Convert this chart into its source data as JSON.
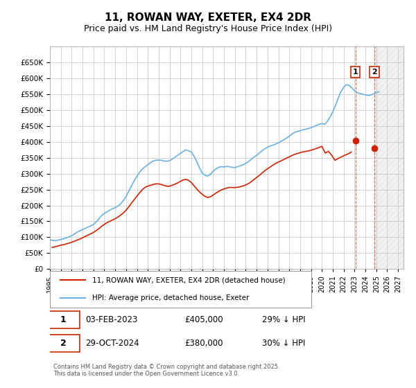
{
  "title": "11, ROWAN WAY, EXETER, EX4 2DR",
  "subtitle": "Price paid vs. HM Land Registry's House Price Index (HPI)",
  "ylabel": "",
  "background_color": "#ffffff",
  "plot_bg_color": "#ffffff",
  "grid_color": "#cccccc",
  "hpi_color": "#6ab0e0",
  "price_color": "#cc2200",
  "ylim": [
    0,
    700000
  ],
  "yticks": [
    0,
    50000,
    100000,
    150000,
    200000,
    250000,
    300000,
    350000,
    400000,
    450000,
    500000,
    550000,
    600000,
    650000
  ],
  "xlim_start": 1995.0,
  "xlim_end": 2027.5,
  "xticks": [
    1995,
    1996,
    1997,
    1998,
    1999,
    2000,
    2001,
    2002,
    2003,
    2004,
    2005,
    2006,
    2007,
    2008,
    2009,
    2010,
    2011,
    2012,
    2013,
    2014,
    2015,
    2016,
    2017,
    2018,
    2019,
    2020,
    2021,
    2022,
    2023,
    2024,
    2025,
    2026,
    2027
  ],
  "sale1_x": 2023.085,
  "sale1_y": 405000,
  "sale1_label": "1",
  "sale2_x": 2024.83,
  "sale2_y": 380000,
  "sale2_label": "2",
  "legend_line1": "11, ROWAN WAY, EXETER, EX4 2DR (detached house)",
  "legend_line2": "HPI: Average price, detached house, Exeter",
  "table_rows": [
    {
      "num": "1",
      "date": "03-FEB-2023",
      "price": "£405,000",
      "note": "29% ↓ HPI"
    },
    {
      "num": "2",
      "date": "29-OCT-2024",
      "price": "£380,000",
      "note": "30% ↓ HPI"
    }
  ],
  "footer": "Contains HM Land Registry data © Crown copyright and database right 2025.\nThis data is licensed under the Open Government Licence v3.0.",
  "hpi_data_x": [
    1995.0,
    1995.25,
    1995.5,
    1995.75,
    1996.0,
    1996.25,
    1996.5,
    1996.75,
    1997.0,
    1997.25,
    1997.5,
    1997.75,
    1998.0,
    1998.25,
    1998.5,
    1998.75,
    1999.0,
    1999.25,
    1999.5,
    1999.75,
    2000.0,
    2000.25,
    2000.5,
    2000.75,
    2001.0,
    2001.25,
    2001.5,
    2001.75,
    2002.0,
    2002.25,
    2002.5,
    2002.75,
    2003.0,
    2003.25,
    2003.5,
    2003.75,
    2004.0,
    2004.25,
    2004.5,
    2004.75,
    2005.0,
    2005.25,
    2005.5,
    2005.75,
    2006.0,
    2006.25,
    2006.5,
    2006.75,
    2007.0,
    2007.25,
    2007.5,
    2007.75,
    2008.0,
    2008.25,
    2008.5,
    2008.75,
    2009.0,
    2009.25,
    2009.5,
    2009.75,
    2010.0,
    2010.25,
    2010.5,
    2010.75,
    2011.0,
    2011.25,
    2011.5,
    2011.75,
    2012.0,
    2012.25,
    2012.5,
    2012.75,
    2013.0,
    2013.25,
    2013.5,
    2013.75,
    2014.0,
    2014.25,
    2014.5,
    2014.75,
    2015.0,
    2015.25,
    2015.5,
    2015.75,
    2016.0,
    2016.25,
    2016.5,
    2016.75,
    2017.0,
    2017.25,
    2017.5,
    2017.75,
    2018.0,
    2018.25,
    2018.5,
    2018.75,
    2019.0,
    2019.25,
    2019.5,
    2019.75,
    2020.0,
    2020.25,
    2020.5,
    2020.75,
    2021.0,
    2021.25,
    2021.5,
    2021.75,
    2022.0,
    2022.25,
    2022.5,
    2022.75,
    2023.0,
    2023.25,
    2023.5,
    2023.75,
    2024.0,
    2024.25,
    2024.5,
    2024.75,
    2025.0,
    2025.25
  ],
  "hpi_data_y": [
    92000,
    90000,
    89000,
    91000,
    93000,
    95000,
    98000,
    101000,
    105000,
    110000,
    116000,
    120000,
    124000,
    128000,
    132000,
    136000,
    140000,
    148000,
    158000,
    168000,
    175000,
    180000,
    185000,
    190000,
    193000,
    198000,
    205000,
    215000,
    228000,
    245000,
    262000,
    278000,
    292000,
    305000,
    315000,
    322000,
    328000,
    335000,
    340000,
    342000,
    343000,
    342000,
    340000,
    339000,
    341000,
    346000,
    352000,
    358000,
    364000,
    370000,
    375000,
    372000,
    368000,
    355000,
    338000,
    318000,
    302000,
    295000,
    292000,
    298000,
    308000,
    315000,
    320000,
    322000,
    321000,
    323000,
    322000,
    320000,
    319000,
    322000,
    325000,
    328000,
    332000,
    338000,
    345000,
    352000,
    358000,
    365000,
    372000,
    378000,
    383000,
    387000,
    390000,
    393000,
    397000,
    402000,
    407000,
    412000,
    418000,
    425000,
    430000,
    433000,
    435000,
    438000,
    440000,
    442000,
    445000,
    448000,
    452000,
    455000,
    458000,
    455000,
    465000,
    478000,
    495000,
    515000,
    538000,
    558000,
    572000,
    580000,
    578000,
    570000,
    561000,
    555000,
    552000,
    550000,
    548000,
    546000,
    548000,
    551000,
    555000,
    558000
  ],
  "price_data_x": [
    1995.2,
    1995.5,
    1995.7,
    1996.0,
    1996.3,
    1996.6,
    1996.9,
    1997.2,
    1997.5,
    1997.8,
    1998.1,
    1998.4,
    1998.7,
    1999.0,
    1999.3,
    1999.6,
    1999.9,
    2000.2,
    2000.5,
    2000.8,
    2001.1,
    2001.4,
    2001.7,
    2002.0,
    2002.3,
    2002.6,
    2002.9,
    2003.2,
    2003.5,
    2003.8,
    2004.1,
    2004.4,
    2004.7,
    2005.0,
    2005.3,
    2005.6,
    2005.9,
    2006.2,
    2006.5,
    2006.8,
    2007.1,
    2007.4,
    2007.7,
    2008.0,
    2008.3,
    2008.6,
    2008.9,
    2009.2,
    2009.5,
    2009.8,
    2010.1,
    2010.4,
    2010.7,
    2011.0,
    2011.3,
    2011.6,
    2011.9,
    2012.2,
    2012.5,
    2012.8,
    2013.1,
    2013.4,
    2013.7,
    2014.0,
    2014.3,
    2014.6,
    2014.9,
    2015.2,
    2015.5,
    2015.8,
    2016.1,
    2016.4,
    2016.7,
    2017.0,
    2017.3,
    2017.6,
    2017.9,
    2018.2,
    2018.5,
    2018.8,
    2019.1,
    2019.4,
    2019.7,
    2020.0,
    2020.3,
    2020.6,
    2020.9,
    2021.2,
    2021.5,
    2021.8,
    2022.1,
    2022.4,
    2022.7,
    2023.085,
    2024.83
  ],
  "price_data_y": [
    68000,
    70000,
    72000,
    75000,
    77000,
    80000,
    83000,
    87000,
    91000,
    95000,
    100000,
    105000,
    110000,
    115000,
    122000,
    130000,
    138000,
    145000,
    150000,
    155000,
    160000,
    167000,
    175000,
    185000,
    198000,
    212000,
    225000,
    238000,
    250000,
    258000,
    262000,
    265000,
    268000,
    268000,
    265000,
    262000,
    260000,
    263000,
    267000,
    272000,
    278000,
    282000,
    280000,
    272000,
    260000,
    248000,
    238000,
    230000,
    225000,
    228000,
    235000,
    242000,
    248000,
    252000,
    255000,
    257000,
    256000,
    257000,
    259000,
    262000,
    266000,
    272000,
    280000,
    288000,
    296000,
    305000,
    313000,
    320000,
    327000,
    333000,
    338000,
    343000,
    348000,
    353000,
    358000,
    362000,
    365000,
    368000,
    370000,
    372000,
    375000,
    378000,
    382000,
    386000,
    365000,
    370000,
    358000,
    342000,
    348000,
    353000,
    358000,
    362000,
    368000,
    405000,
    380000
  ]
}
